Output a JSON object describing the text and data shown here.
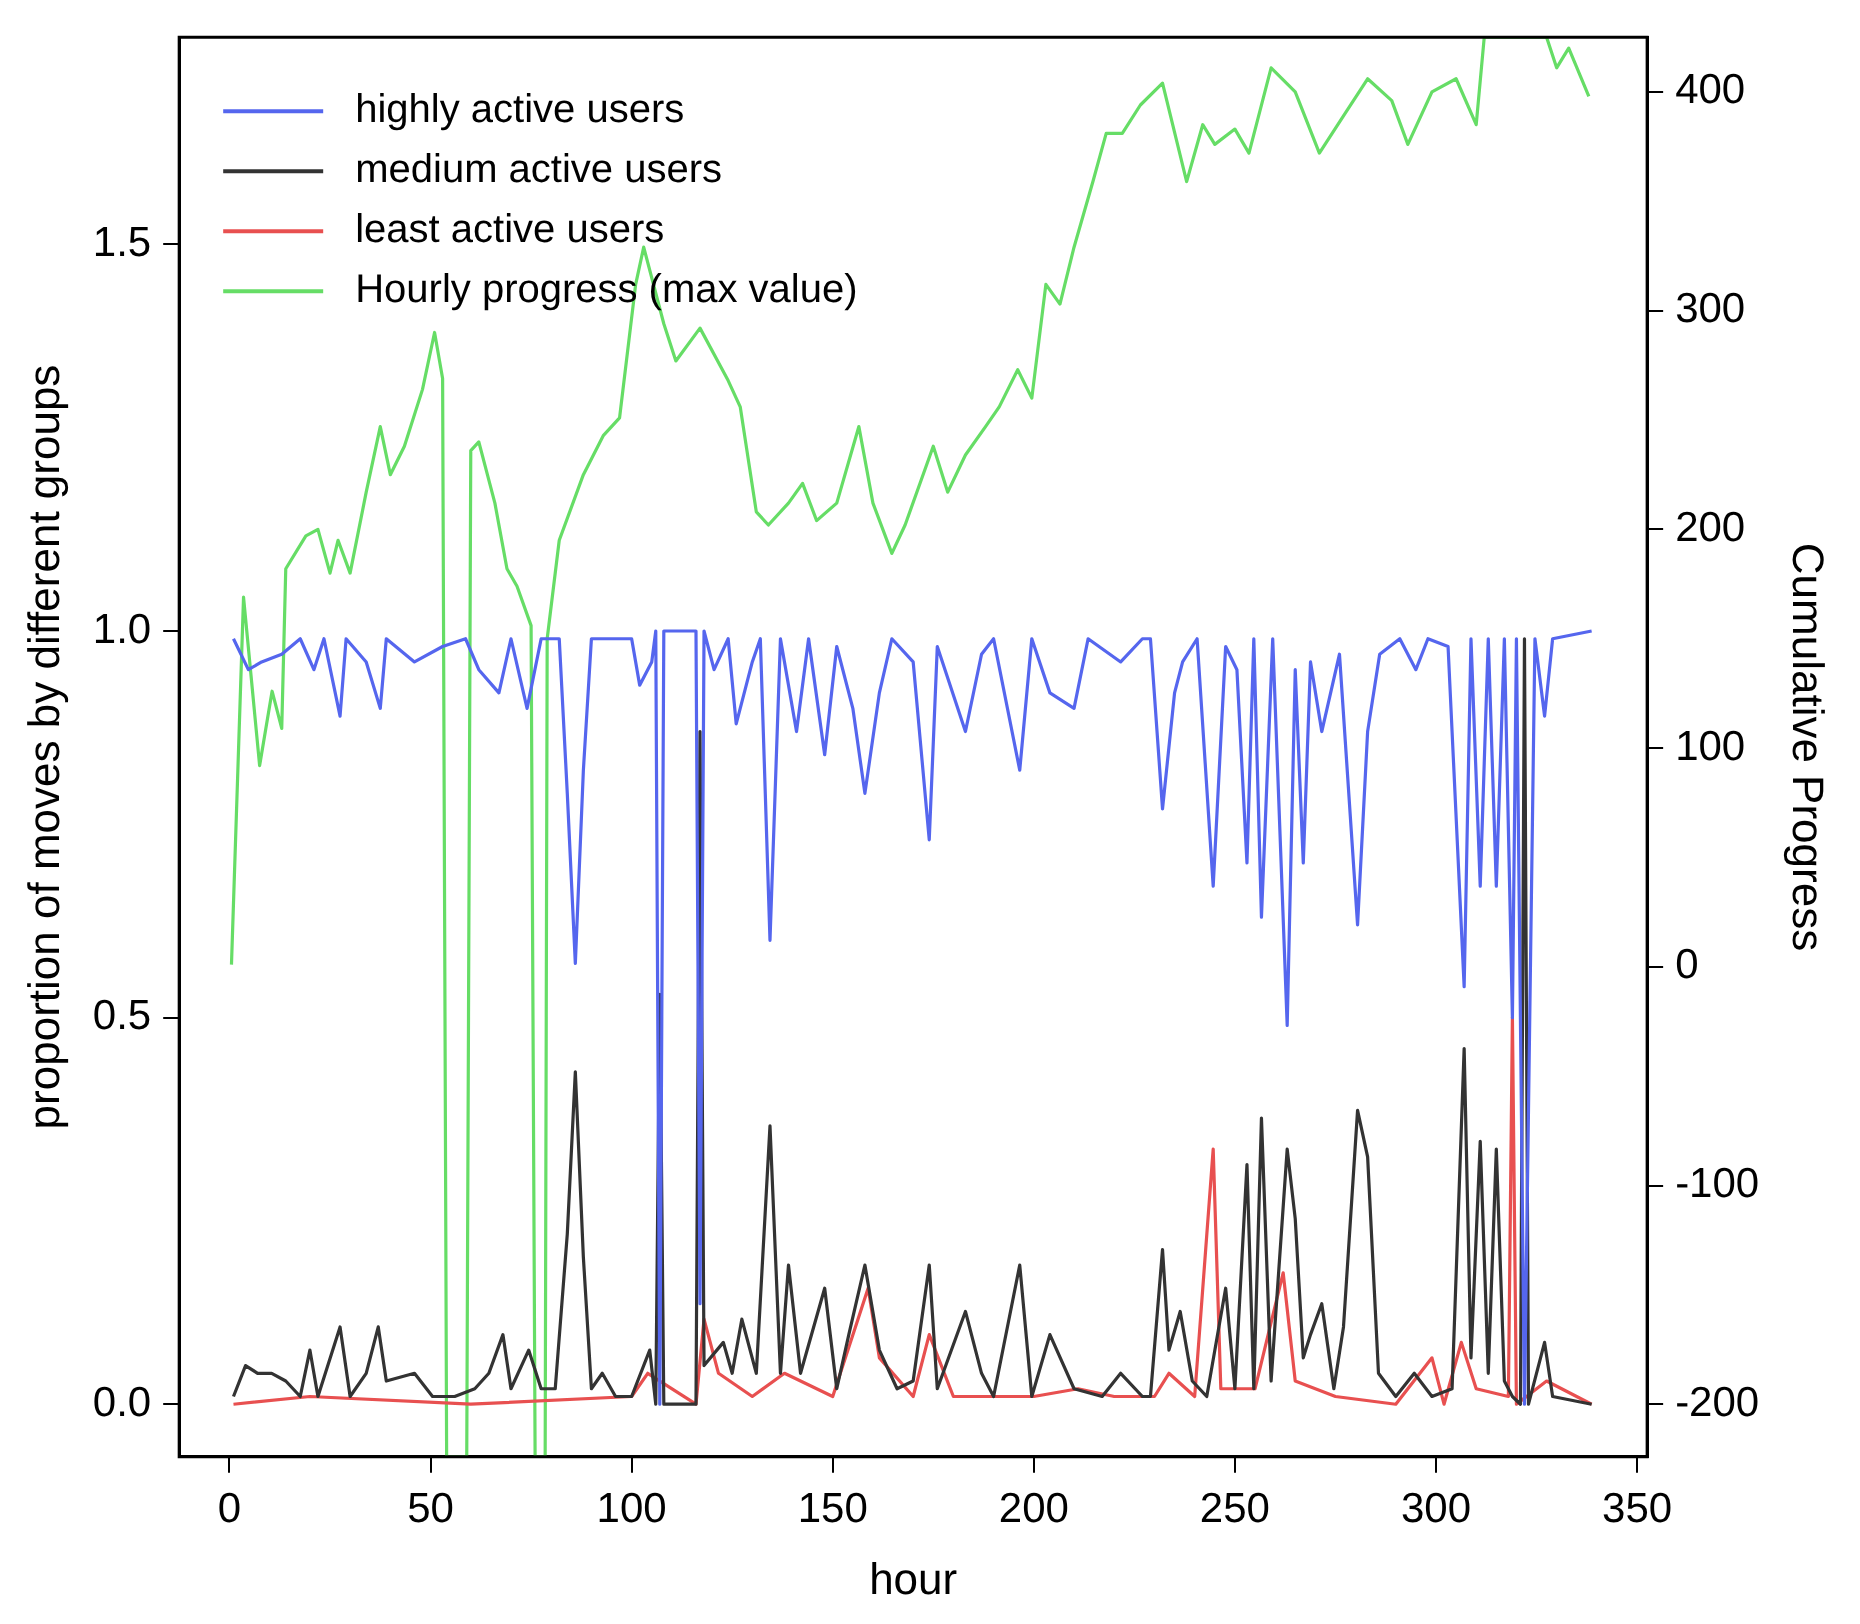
{
  "chart_data": {
    "type": "line",
    "xlabel": "hour",
    "ylabel": "proportion of moves by different groups",
    "y2label": "Cumulative Progress",
    "xlim": [
      -12.5,
      352.5
    ],
    "xticks": [
      0,
      50,
      100,
      150,
      200,
      250,
      300,
      350
    ],
    "ylim": [
      -0.068,
      1.768
    ],
    "yticks": [
      {
        "value": 0,
        "label": "0.0"
      },
      {
        "value": 0.5,
        "label": "0.5"
      },
      {
        "value": 1,
        "label": "1.0"
      },
      {
        "value": 1.5,
        "label": "1.5"
      }
    ],
    "y2lim": [
      -224,
      425
    ],
    "y2ticks": [
      -200,
      -100,
      0,
      100,
      200,
      300,
      400
    ],
    "grid": false,
    "legend": "top left",
    "marker": "none",
    "line_style": "solid",
    "series": [
      {
        "name": "highly active users",
        "color": "#5566ee",
        "x": [
          1,
          4.7,
          8,
          13,
          17.6,
          21,
          23.5,
          27.5,
          29,
          34,
          37.5,
          39,
          46,
          53,
          58.7,
          62,
          67,
          70,
          74,
          77.5,
          82,
          84,
          86,
          88,
          90,
          96,
          100,
          102,
          105,
          106,
          107,
          108,
          116,
          117,
          118,
          120.5,
          124,
          126,
          130,
          132,
          134.4,
          137,
          141,
          144,
          148,
          151,
          155,
          158,
          161.6,
          164.7,
          170,
          174,
          176,
          183,
          187,
          190,
          196.5,
          199.5,
          204,
          210,
          213.5,
          221.6,
          227,
          229,
          232,
          235,
          237,
          240.6,
          244.6,
          247.7,
          250.5,
          253,
          254.7,
          256.6,
          259.4,
          263,
          265,
          267,
          268.8,
          271.6,
          276,
          280.5,
          283,
          286,
          291,
          295,
          298,
          303,
          307,
          308.7,
          311,
          313,
          315,
          317,
          319,
          320,
          322,
          324.6,
          327,
          329,
          338.7
        ],
        "values": [
          0.99,
          0.95,
          0.96,
          0.97,
          0.99,
          0.95,
          0.99,
          0.89,
          0.99,
          0.96,
          0.9,
          0.99,
          0.96,
          0.98,
          0.99,
          0.95,
          0.92,
          0.99,
          0.9,
          0.99,
          0.99,
          0.79,
          0.57,
          0.82,
          0.99,
          0.99,
          0.99,
          0.93,
          0.96,
          1,
          0,
          1,
          1,
          0.13,
          1,
          0.95,
          0.99,
          0.88,
          0.96,
          0.99,
          0.6,
          0.99,
          0.87,
          0.99,
          0.84,
          0.98,
          0.9,
          0.79,
          0.92,
          0.99,
          0.96,
          0.73,
          0.98,
          0.87,
          0.97,
          0.99,
          0.82,
          0.99,
          0.92,
          0.9,
          0.99,
          0.96,
          0.99,
          0.99,
          0.77,
          0.92,
          0.96,
          0.99,
          0.67,
          0.98,
          0.95,
          0.7,
          0.99,
          0.63,
          0.99,
          0.49,
          0.95,
          0.7,
          0.96,
          0.87,
          0.97,
          0.62,
          0.87,
          0.97,
          0.99,
          0.95,
          0.99,
          0.98,
          0.54,
          0.99,
          0.67,
          0.99,
          0.67,
          0.99,
          0.5,
          0.99,
          0,
          0.99,
          0.89,
          0.99,
          1
        ]
      },
      {
        "name": "medium active users",
        "color": "#333333",
        "x": [
          1,
          4,
          7,
          10.5,
          14,
          17.6,
          20,
          22,
          27.5,
          30,
          34,
          37,
          39,
          46,
          50.5,
          56,
          61,
          64.5,
          68,
          70,
          74.4,
          77.5,
          81,
          84,
          86,
          88,
          90,
          92.7,
          96,
          100,
          104.5,
          106,
          107,
          108,
          116,
          117,
          118,
          122.8,
          125,
          127.4,
          131,
          134.4,
          137,
          139,
          142,
          148,
          151,
          154,
          158,
          161.6,
          166,
          170,
          174,
          176,
          183,
          187,
          190,
          196.5,
          199.5,
          204,
          210,
          217,
          221.6,
          227,
          229,
          232,
          233.6,
          236.4,
          239.4,
          243,
          247.7,
          250,
          253,
          254.7,
          256.6,
          259,
          263,
          265,
          267,
          268.8,
          271.6,
          274.6,
          277,
          280.5,
          283,
          285.7,
          290,
          294.6,
          299,
          304,
          307,
          308.7,
          311,
          313,
          315,
          317,
          319,
          321,
          322,
          323,
          327,
          329,
          338.7
        ],
        "values": [
          0.01,
          0.05,
          0.04,
          0.04,
          0.03,
          0.01,
          0.07,
          0.01,
          0.1,
          0.01,
          0.04,
          0.1,
          0.03,
          0.04,
          0.01,
          0.01,
          0.02,
          0.04,
          0.09,
          0.02,
          0.07,
          0.02,
          0.02,
          0.22,
          0.43,
          0.19,
          0.02,
          0.04,
          0.01,
          0.01,
          0.07,
          0,
          0.53,
          0,
          0,
          0.87,
          0.05,
          0.08,
          0.04,
          0.11,
          0.04,
          0.36,
          0.04,
          0.18,
          0.04,
          0.15,
          0.02,
          0.09,
          0.18,
          0.07,
          0.02,
          0.03,
          0.18,
          0.02,
          0.12,
          0.04,
          0.01,
          0.18,
          0.01,
          0.09,
          0.02,
          0.01,
          0.04,
          0.01,
          0.01,
          0.2,
          0.07,
          0.12,
          0.03,
          0.01,
          0.15,
          0.02,
          0.31,
          0.02,
          0.37,
          0.03,
          0.33,
          0.24,
          0.06,
          0.09,
          0.13,
          0.02,
          0.1,
          0.38,
          0.32,
          0.04,
          0.01,
          0.04,
          0.01,
          0.02,
          0.46,
          0.06,
          0.34,
          0.04,
          0.33,
          0.03,
          0.01,
          0,
          0.99,
          0,
          0.08,
          0.01,
          0
        ]
      },
      {
        "name": "least active users",
        "color": "#e85050",
        "x": [
          1,
          20,
          60,
          100,
          104,
          116,
          118,
          121.6,
          130,
          138,
          150,
          158.8,
          161.6,
          170,
          174,
          180,
          200,
          211,
          220,
          230,
          233.6,
          240,
          244.6,
          246.5,
          255,
          262,
          265,
          275,
          290,
          299,
          302,
          306.3,
          310,
          318,
          319,
          320,
          327.5,
          338.7
        ],
        "values": [
          0,
          0.01,
          0,
          0.01,
          0.04,
          0,
          0.11,
          0.04,
          0.01,
          0.04,
          0.01,
          0.15,
          0.06,
          0.01,
          0.09,
          0.01,
          0.01,
          0.02,
          0.01,
          0.01,
          0.04,
          0.01,
          0.33,
          0.02,
          0.02,
          0.17,
          0.03,
          0.01,
          0,
          0.06,
          0,
          0.08,
          0.02,
          0.01,
          0.5,
          0,
          0.03,
          0
        ]
      },
      {
        "name": "Hourly progress (max value)",
        "color": "#66dd66",
        "axis": "y2",
        "x": [
          0.5,
          3.5,
          7.5,
          10.6,
          13,
          14,
          19,
          22,
          25,
          27,
          30,
          34,
          37.5,
          40,
          43.5,
          48,
          51,
          53,
          54,
          59,
          60,
          62,
          66,
          69,
          71.5,
          75,
          76,
          78.5,
          79,
          82,
          88,
          93,
          97,
          101,
          103,
          108,
          111,
          117,
          124,
          127,
          131,
          134,
          139,
          142.5,
          146,
          151,
          156.5,
          160,
          164.7,
          168,
          175,
          178.6,
          183,
          188,
          191.4,
          196,
          199.5,
          203,
          206.5,
          210,
          214.7,
          218,
          222,
          226.5,
          232,
          238,
          242,
          245,
          250,
          253.5,
          259,
          265,
          271,
          277,
          283,
          289,
          293,
          299,
          305,
          310,
          312,
          327.5,
          330,
          333,
          338
        ],
        "values": [
          1,
          169,
          92,
          126,
          109,
          182,
          197,
          200,
          180,
          195,
          180,
          217,
          247,
          225,
          238,
          264,
          290,
          269,
          -224,
          -224,
          236,
          240,
          212,
          182,
          174,
          156,
          -224,
          -224,
          150,
          195,
          225,
          243,
          251,
          312,
          329,
          294,
          277,
          292,
          268,
          256,
          208,
          202,
          212,
          221,
          204,
          212,
          247,
          212,
          189,
          202,
          238,
          217,
          234,
          247,
          256,
          273,
          260,
          312,
          303,
          329,
          359,
          381,
          381,
          394,
          404,
          359,
          385,
          376,
          383,
          372,
          411,
          400,
          372,
          389,
          406,
          396,
          376,
          400,
          406,
          385,
          425,
          425,
          411,
          420,
          398
        ]
      }
    ]
  }
}
